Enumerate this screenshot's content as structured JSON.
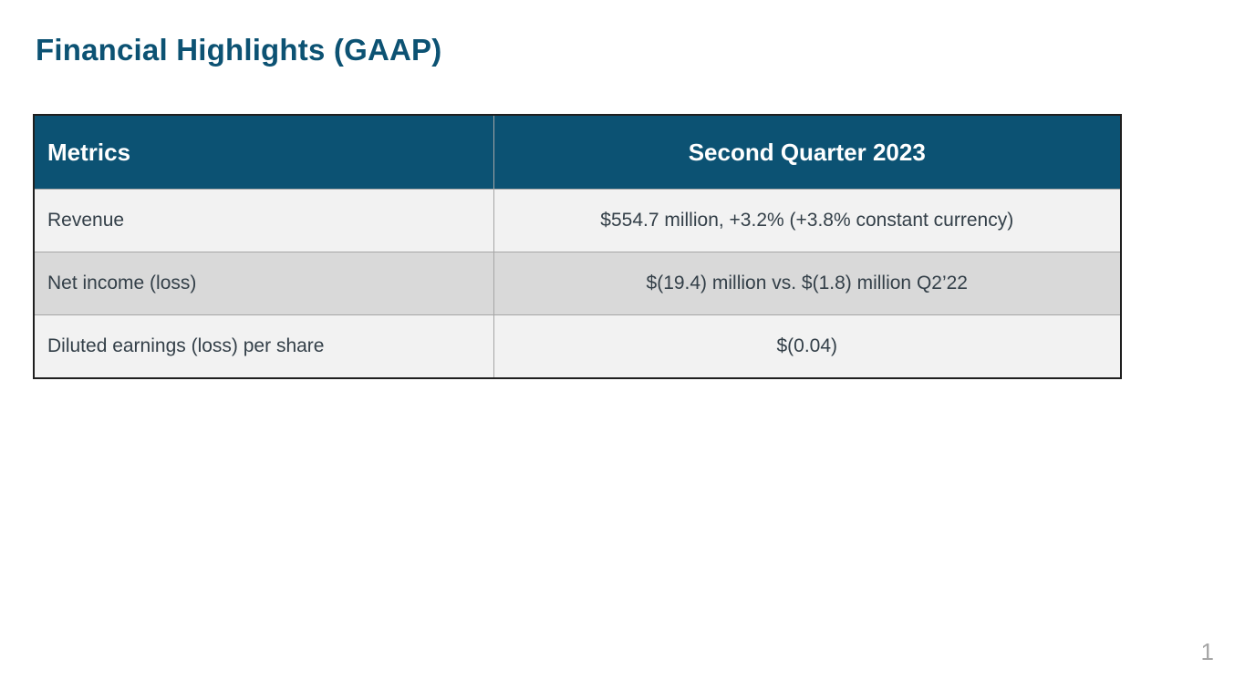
{
  "slide": {
    "title": "Financial Highlights (GAAP)",
    "page_number": "1"
  },
  "table": {
    "columns": [
      "Metrics",
      "Second Quarter 2023"
    ],
    "rows": [
      {
        "metric": "Revenue",
        "value": "$554.7 million, +3.2% (+3.8% constant currency)"
      },
      {
        "metric": "Net income (loss)",
        "value": "$(19.4) million vs. $(1.8) million Q2’22"
      },
      {
        "metric": "Diluted earnings (loss) per share",
        "value": "$(0.04)"
      }
    ]
  },
  "colors": {
    "accent_teal": "#0C5273",
    "header_text": "#FFFFFF",
    "row_light": "#F2F2F2",
    "row_dark": "#D9D9D9",
    "body_text": "#333F48",
    "outer_border": "#1F1F1F",
    "inner_border": "#A6A6A6",
    "page_number_gray": "#A6A6A6"
  }
}
